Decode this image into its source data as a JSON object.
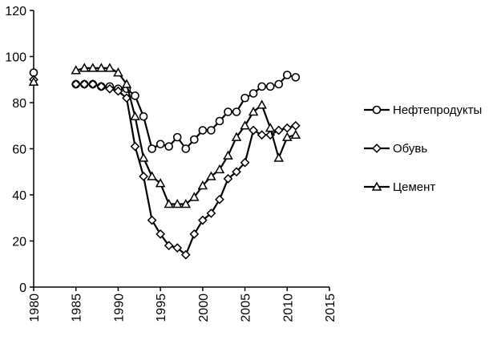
{
  "chart_data": {
    "type": "line",
    "title": "",
    "xlabel": "",
    "ylabel": "",
    "xlim": [
      1980,
      2015
    ],
    "ylim": [
      0,
      120
    ],
    "xticks": [
      "1980",
      "1985",
      "1990",
      "1995",
      "2000",
      "2005",
      "2010",
      "2015"
    ],
    "yticks": [
      "0",
      "20",
      "40",
      "60",
      "80",
      "100",
      "120"
    ],
    "grid": false,
    "legend_position": "right",
    "series": [
      {
        "name": "Нефтепродукты",
        "marker": "circle",
        "color": "#000000",
        "points": [
          [
            1980,
            93
          ],
          [
            1985,
            88
          ],
          [
            1986,
            88
          ],
          [
            1987,
            88
          ],
          [
            1988,
            87
          ],
          [
            1989,
            87
          ],
          [
            1990,
            86
          ],
          [
            1991,
            86
          ],
          [
            1992,
            83
          ],
          [
            1993,
            74
          ],
          [
            1994,
            60
          ],
          [
            1995,
            62
          ],
          [
            1996,
            61
          ],
          [
            1997,
            65
          ],
          [
            1998,
            60
          ],
          [
            1999,
            64
          ],
          [
            2000,
            68
          ],
          [
            2001,
            68
          ],
          [
            2002,
            72
          ],
          [
            2003,
            76
          ],
          [
            2004,
            76
          ],
          [
            2005,
            82
          ],
          [
            2006,
            84
          ],
          [
            2007,
            87
          ],
          [
            2008,
            87
          ],
          [
            2009,
            88
          ],
          [
            2010,
            92
          ],
          [
            2011,
            91
          ]
        ]
      },
      {
        "name": "Обувь",
        "marker": "diamond",
        "color": "#000000",
        "points": [
          [
            1980,
            90
          ],
          [
            1985,
            88
          ],
          [
            1986,
            88
          ],
          [
            1987,
            88
          ],
          [
            1988,
            87
          ],
          [
            1989,
            86
          ],
          [
            1990,
            85
          ],
          [
            1991,
            82
          ],
          [
            1992,
            61
          ],
          [
            1993,
            48
          ],
          [
            1994,
            29
          ],
          [
            1995,
            23
          ],
          [
            1996,
            18
          ],
          [
            1997,
            17
          ],
          [
            1998,
            14
          ],
          [
            1999,
            23
          ],
          [
            2000,
            29
          ],
          [
            2001,
            32
          ],
          [
            2002,
            38
          ],
          [
            2003,
            47
          ],
          [
            2004,
            50
          ],
          [
            2005,
            54
          ],
          [
            2006,
            68
          ],
          [
            2007,
            66
          ],
          [
            2008,
            66
          ],
          [
            2009,
            68
          ],
          [
            2010,
            69
          ],
          [
            2011,
            70
          ]
        ]
      },
      {
        "name": "Цемент",
        "marker": "triangle",
        "color": "#000000",
        "points": [
          [
            1980,
            89
          ],
          [
            1985,
            94
          ],
          [
            1986,
            95
          ],
          [
            1987,
            95
          ],
          [
            1988,
            95
          ],
          [
            1989,
            95
          ],
          [
            1990,
            93
          ],
          [
            1991,
            88
          ],
          [
            1992,
            74
          ],
          [
            1993,
            56
          ],
          [
            1994,
            48
          ],
          [
            1995,
            45
          ],
          [
            1996,
            36
          ],
          [
            1997,
            36
          ],
          [
            1998,
            36
          ],
          [
            1999,
            39
          ],
          [
            2000,
            44
          ],
          [
            2001,
            48
          ],
          [
            2002,
            51
          ],
          [
            2003,
            57
          ],
          [
            2004,
            65
          ],
          [
            2005,
            70
          ],
          [
            2006,
            76
          ],
          [
            2007,
            79
          ],
          [
            2008,
            69
          ],
          [
            2009,
            56
          ],
          [
            2010,
            65
          ],
          [
            2011,
            66
          ]
        ]
      }
    ]
  }
}
